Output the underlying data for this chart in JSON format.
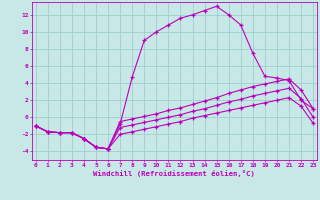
{
  "background_color": "#c8e8e8",
  "line_color": "#bb00bb",
  "grid_color": "#9ecece",
  "xlabel": "Windchill (Refroidissement éolien,°C)",
  "xlim": [
    -0.3,
    23.3
  ],
  "ylim": [
    -5.0,
    13.5
  ],
  "yticks": [
    -4,
    -2,
    0,
    2,
    4,
    6,
    8,
    10,
    12
  ],
  "xticks": [
    0,
    1,
    2,
    3,
    4,
    5,
    6,
    7,
    8,
    9,
    10,
    11,
    12,
    13,
    14,
    15,
    16,
    17,
    18,
    19,
    20,
    21,
    22,
    23
  ],
  "s1_x": [
    0,
    1,
    2,
    3,
    4,
    5,
    6,
    7,
    8,
    9,
    10,
    11,
    12,
    13,
    14,
    15,
    16,
    17,
    18,
    19,
    20,
    21,
    22,
    23
  ],
  "s1_y": [
    -1.0,
    -1.7,
    -1.8,
    -1.8,
    -2.5,
    -3.5,
    -3.7,
    -0.8,
    4.7,
    9.0,
    10.0,
    10.8,
    11.6,
    12.0,
    12.5,
    13.0,
    12.0,
    10.8,
    7.5,
    4.8,
    4.6,
    4.3,
    2.0,
    1.0
  ],
  "s2_x": [
    0,
    1,
    2,
    3,
    4,
    5,
    6,
    7,
    8,
    9,
    10,
    11,
    12,
    13,
    14,
    15,
    16,
    17,
    18,
    19,
    20,
    21,
    22,
    23
  ],
  "s2_y": [
    -1.0,
    -1.7,
    -1.8,
    -1.8,
    -2.5,
    -3.5,
    -3.7,
    -0.5,
    -0.2,
    0.1,
    0.4,
    0.8,
    1.1,
    1.5,
    1.9,
    2.3,
    2.8,
    3.2,
    3.6,
    3.9,
    4.2,
    4.5,
    3.2,
    1.0
  ],
  "s3_x": [
    0,
    1,
    2,
    3,
    4,
    5,
    6,
    7,
    8,
    9,
    10,
    11,
    12,
    13,
    14,
    15,
    16,
    17,
    18,
    19,
    20,
    21,
    22,
    23
  ],
  "s3_y": [
    -1.0,
    -1.7,
    -1.8,
    -1.8,
    -2.5,
    -3.5,
    -3.7,
    -1.2,
    -0.9,
    -0.6,
    -0.3,
    0.0,
    0.3,
    0.7,
    1.0,
    1.4,
    1.8,
    2.1,
    2.5,
    2.8,
    3.1,
    3.4,
    2.2,
    0.0
  ],
  "s4_x": [
    0,
    1,
    2,
    3,
    4,
    5,
    6,
    7,
    8,
    9,
    10,
    11,
    12,
    13,
    14,
    15,
    16,
    17,
    18,
    19,
    20,
    21,
    22,
    23
  ],
  "s4_y": [
    -1.0,
    -1.7,
    -1.8,
    -1.8,
    -2.5,
    -3.5,
    -3.7,
    -2.0,
    -1.7,
    -1.4,
    -1.1,
    -0.8,
    -0.5,
    -0.1,
    0.2,
    0.5,
    0.8,
    1.1,
    1.4,
    1.7,
    2.0,
    2.3,
    1.3,
    -0.7
  ]
}
